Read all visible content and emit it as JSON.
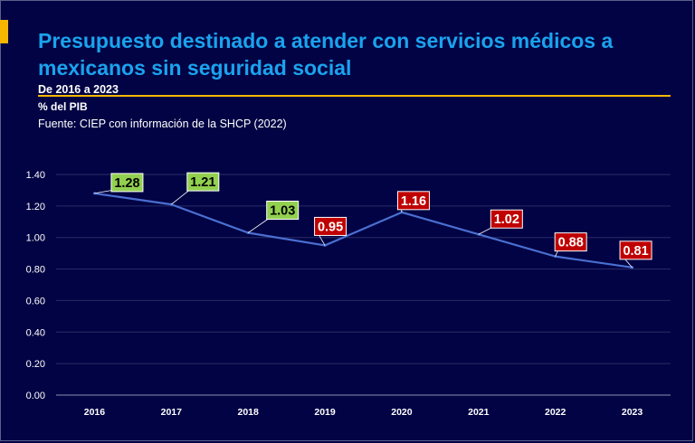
{
  "header": {
    "title": "Presupuesto destinado a atender con servicios médicos a mexicanos sin seguridad social",
    "subtitle": "De 2016 a 2023",
    "unit": "% del PIB",
    "source": "Fuente: CIEP con información de la SHCP (2022)"
  },
  "colors": {
    "background": "#020344",
    "title": "#1aa3ee",
    "accent": "#f6b600",
    "line": "#4a6fd1",
    "label_green": "#92d050",
    "label_red": "#c00000"
  },
  "chart_data": {
    "type": "line",
    "title": "Presupuesto destinado a atender con servicios médicos a mexicanos sin seguridad social",
    "xlabel": "",
    "ylabel": "% del PIB",
    "categories": [
      "2016",
      "2017",
      "2018",
      "2019",
      "2020",
      "2021",
      "2022",
      "2023"
    ],
    "series": [
      {
        "name": "% del PIB",
        "values": [
          1.28,
          1.21,
          1.03,
          0.95,
          1.16,
          1.02,
          0.88,
          0.81
        ],
        "labels": [
          "1.28",
          "1.21",
          "1.03",
          "0.95",
          "1.16",
          "1.02",
          "0.88",
          "0.81"
        ],
        "label_styles": [
          "green",
          "green",
          "green",
          "red",
          "red",
          "red",
          "red",
          "red"
        ]
      }
    ],
    "ylim": [
      0,
      1.4
    ],
    "yticks": [
      0.0,
      0.2,
      0.4,
      0.6,
      0.8,
      1.0,
      1.2,
      1.4
    ],
    "ytick_labels": [
      "0.00",
      "0.20",
      "0.40",
      "0.60",
      "0.80",
      "1.00",
      "1.20",
      "1.40"
    ],
    "grid": true,
    "legend": "none"
  }
}
